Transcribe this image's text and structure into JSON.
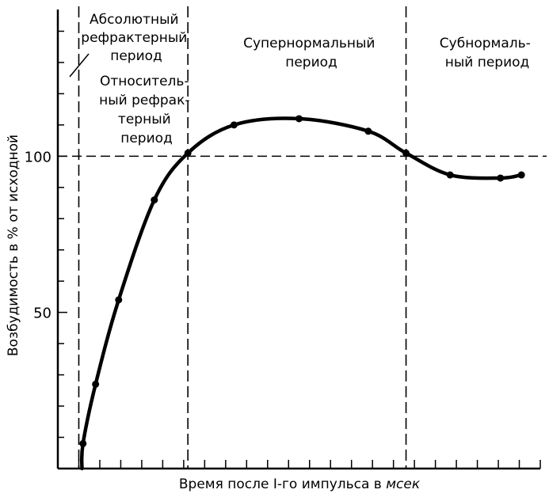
{
  "chart_data": {
    "type": "line",
    "title": "",
    "xlabel_main": "Время после I-го импульса в ",
    "xlabel_unit": "мсек",
    "ylabel": "Возбудимость в % от исходной",
    "yticks": [
      50,
      100
    ],
    "ylim": [
      0,
      150
    ],
    "xlim": [
      0,
      23
    ],
    "reference_line": 100,
    "period_boundaries": [
      1,
      6.2,
      16.6
    ],
    "periods": [
      {
        "name": "absolute-refractory",
        "lines": [
          "Абсолютный",
          "рефрактерный",
          "период"
        ]
      },
      {
        "name": "relative-refractory",
        "lines": [
          "Относитель-",
          "ный рефрак-",
          "терный",
          "период"
        ]
      },
      {
        "name": "supernormal",
        "lines": [
          "Супернормальный",
          "период"
        ]
      },
      {
        "name": "subnormal",
        "lines": [
          "Субнормаль-",
          "ный период"
        ]
      }
    ],
    "series": [
      {
        "x": [
          1.2,
          1.8,
          2.9,
          4.6,
          6.2,
          8.4,
          11.5,
          14.8,
          16.6,
          18.7,
          21.1,
          22.1
        ],
        "y": [
          8,
          27,
          54,
          86,
          101,
          110,
          112,
          108,
          101,
          94,
          93,
          94
        ]
      }
    ]
  }
}
